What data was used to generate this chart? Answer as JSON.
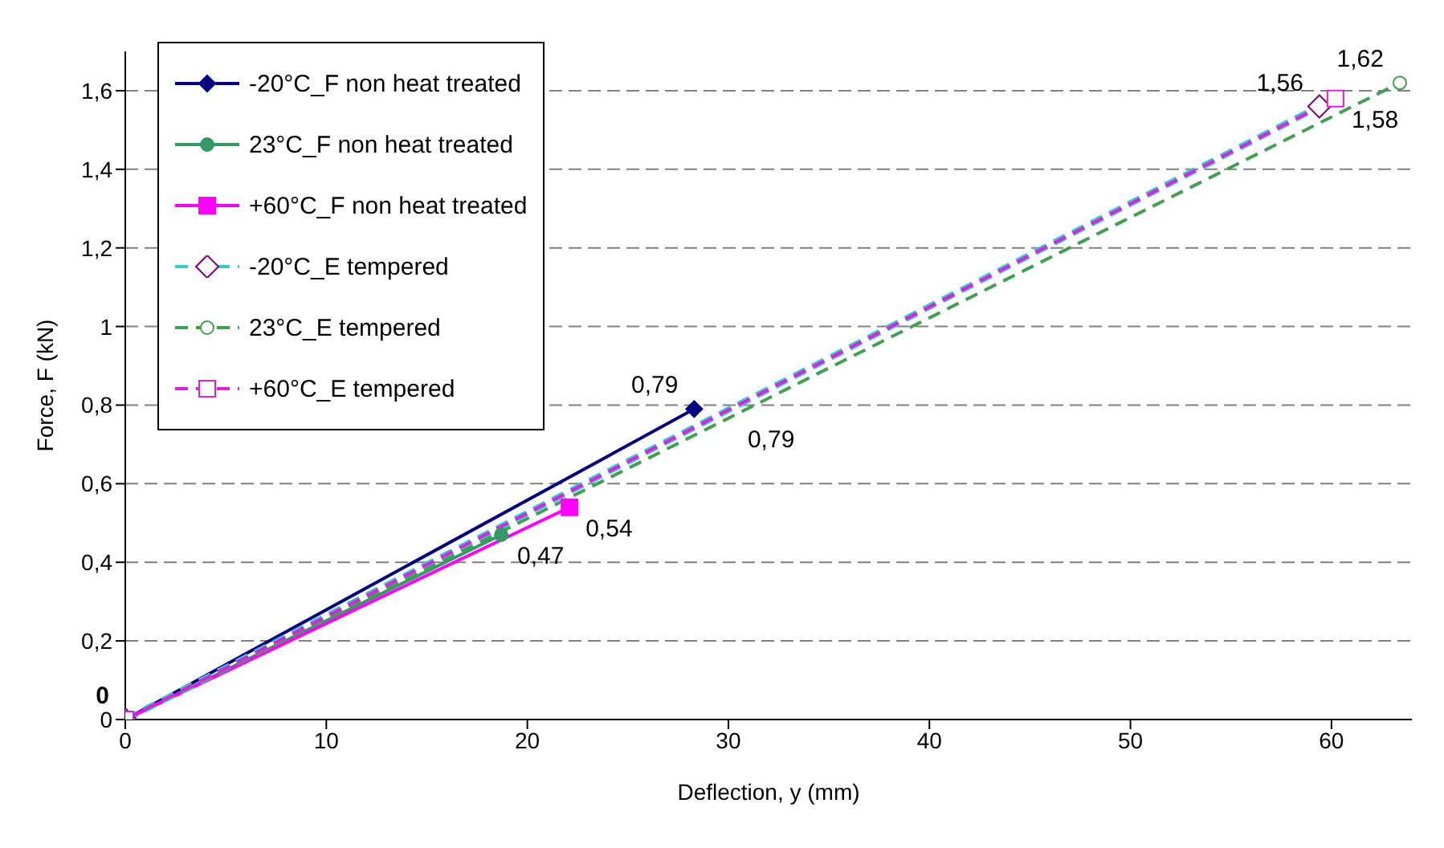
{
  "chart_data": {
    "type": "line",
    "xlabel": "Deflection, y (mm)",
    "ylabel": "Force, F (kN)",
    "xlim": [
      0,
      64
    ],
    "xticks": [
      0,
      10,
      20,
      30,
      40,
      50,
      60
    ],
    "ylim": [
      0,
      1.7
    ],
    "yticks": [
      0,
      {
        "value": 0.2,
        "label": "0,2"
      },
      {
        "value": 0.4,
        "label": "0,4"
      },
      {
        "value": 0.6,
        "label": "0,6"
      },
      {
        "value": 0.8,
        "label": "0,8"
      },
      1,
      {
        "value": 1.2,
        "label": "1,2"
      },
      {
        "value": 1.4,
        "label": "1,4"
      },
      {
        "value": 1.6,
        "label": "1,6"
      }
    ],
    "grid": "y",
    "legend": "top left",
    "annotations": [
      {
        "text": "0,79",
        "x": 30,
        "y": 0.79
      }
    ],
    "series": [
      {
        "name": "-20°C_F non heat treated",
        "color": "#000080",
        "line_style": "solid",
        "marker": "diamond",
        "x": [
          0,
          28.3
        ],
        "values": [
          0,
          0.79
        ],
        "value_labels": [
          "0",
          "0,79"
        ]
      },
      {
        "name": "23°C_F non heat treated",
        "color": "#339966",
        "line_style": "solid",
        "marker": "circle",
        "x": [
          0,
          18.7
        ],
        "values": [
          0,
          0.47
        ],
        "value_labels": [
          null,
          "0,47"
        ]
      },
      {
        "name": "+60°C_F non heat treated",
        "color": "#ff00ff",
        "line_style": "solid",
        "marker": "square",
        "x": [
          0,
          22.1
        ],
        "values": [
          0,
          0.54
        ],
        "value_labels": [
          null,
          "0,54"
        ]
      },
      {
        "name": "-20°C_E tempered",
        "color": "#33cccc",
        "line_style": "dashed",
        "marker": "diamond",
        "x": [
          0,
          59.4
        ],
        "values": [
          0,
          1.56
        ],
        "value_labels": [
          null,
          "1,56"
        ]
      },
      {
        "name": "23°C_E tempered",
        "color": "#40a050",
        "line_style": "dashed",
        "marker": "circle",
        "x": [
          0,
          63.4
        ],
        "values": [
          0,
          1.62
        ],
        "value_labels": [
          null,
          "1,62"
        ]
      },
      {
        "name": "+60°C_E tempered",
        "color": "#e020e0",
        "line_style": "dashed",
        "marker": "square",
        "x": [
          0,
          60.2
        ],
        "values": [
          0,
          1.58
        ],
        "value_labels": [
          null,
          "1,58"
        ]
      }
    ]
  }
}
